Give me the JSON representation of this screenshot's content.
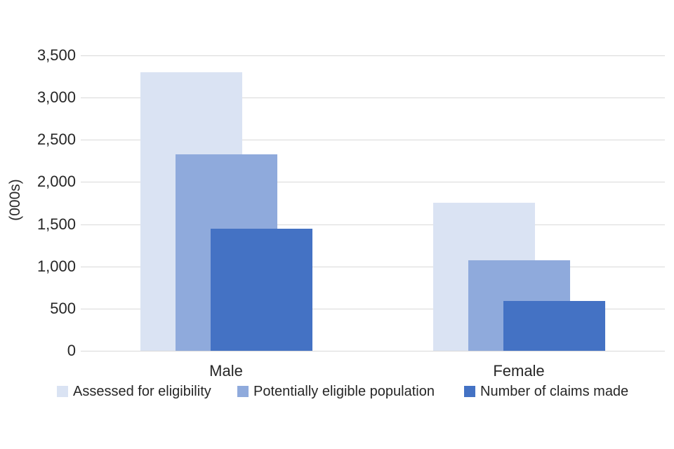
{
  "chart_data": {
    "type": "bar",
    "bar_style": "overlapped",
    "title": "",
    "categories": [
      "Male",
      "Female"
    ],
    "series": [
      {
        "name": "Assessed for eligibility",
        "color": "#dae3f3",
        "values": [
          3300,
          1750
        ]
      },
      {
        "name": "Potentially eligible population",
        "color": "#8faadc",
        "values": [
          2330,
          1070
        ]
      },
      {
        "name": "Number of claims made",
        "color": "#4472c4",
        "values": [
          1450,
          590
        ]
      }
    ],
    "xlabel": "",
    "ylabel": "(000s)",
    "ylim": [
      0,
      3500
    ],
    "ytick_values": [
      0,
      500,
      1000,
      1500,
      2000,
      2500,
      3000,
      3500
    ],
    "ytick_labels": [
      "0",
      "500",
      "1,000",
      "1,500",
      "2,000",
      "2,500",
      "3,000",
      "3,500"
    ],
    "grid": true,
    "legend_position": "bottom"
  },
  "colors": {
    "gridline": "#d9d9d9",
    "text": "#262626",
    "background": "#ffffff"
  }
}
